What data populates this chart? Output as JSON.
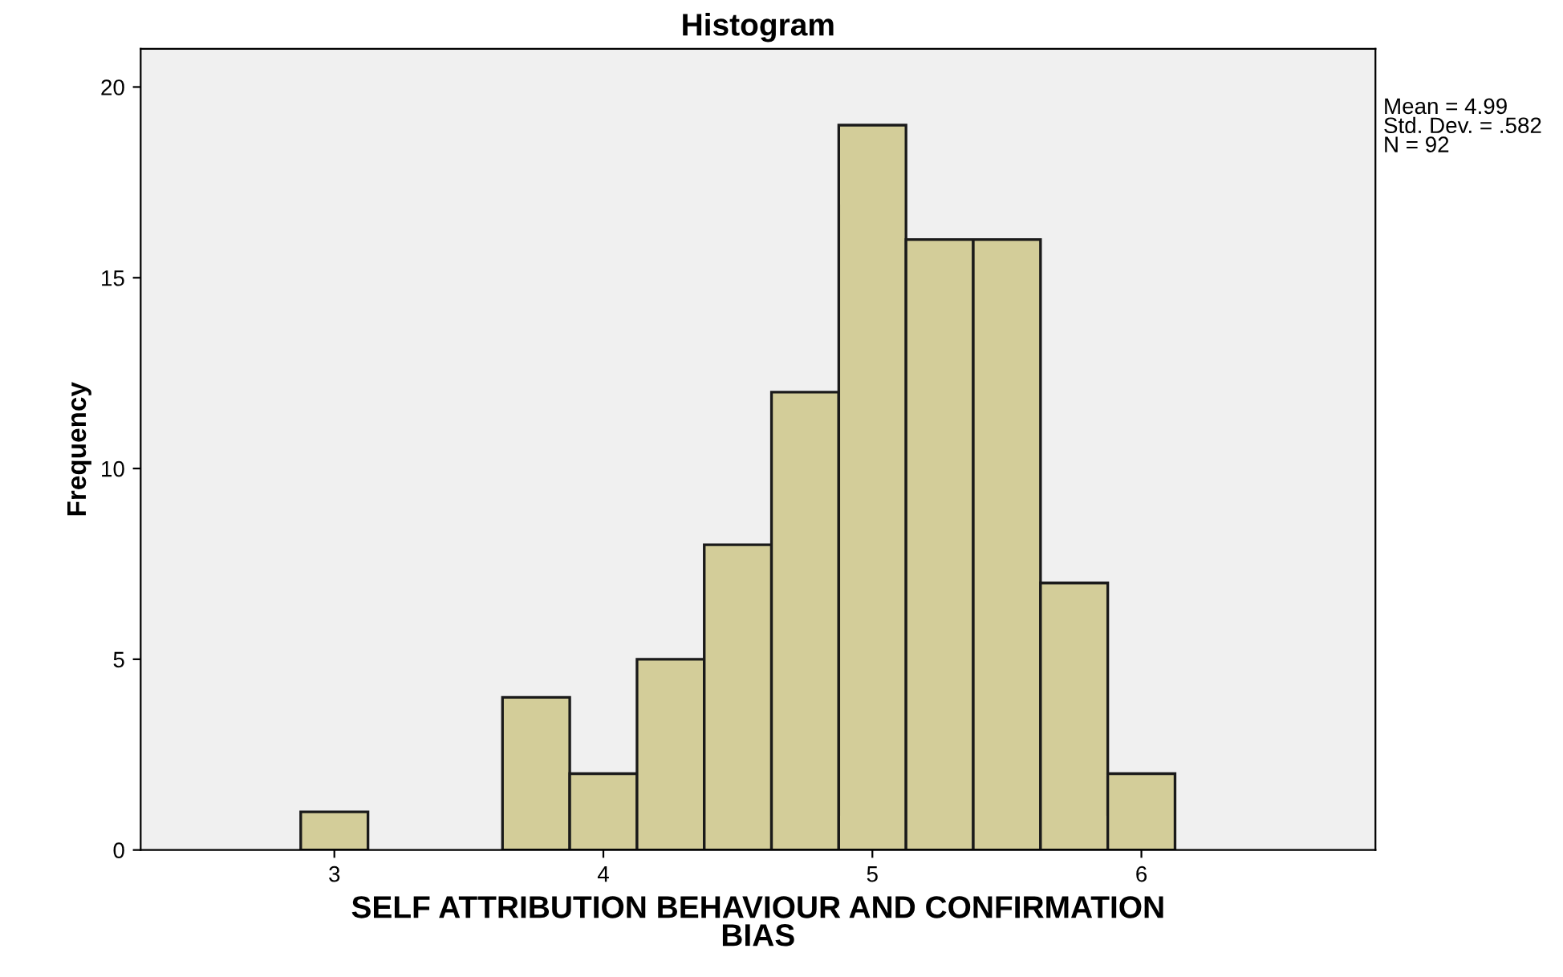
{
  "chart_data": {
    "type": "histogram",
    "title": "Histogram",
    "xlabel": "SELF ATTRIBUTION BEHAVIOUR AND CONFIRMATION\nBIAS",
    "ylabel": "Frequency",
    "bins": [
      2.875,
      3.125,
      3.375,
      3.625,
      3.875,
      4.125,
      4.375,
      4.625,
      4.875,
      5.125,
      5.375,
      5.625,
      5.875,
      6.125
    ],
    "values": [
      1,
      0,
      0,
      4,
      2,
      5,
      8,
      12,
      19,
      16,
      16,
      7,
      2
    ],
    "color": "#d3cd99",
    "xlim": [
      2.28,
      6.87
    ],
    "ylim": [
      0,
      21
    ],
    "xticks": [
      3,
      4,
      5,
      6
    ],
    "yticks": [
      0,
      5,
      10,
      15,
      20
    ],
    "annotations": [
      "Mean = 4.99\nStd. Dev. = .582\nN = 92"
    ],
    "grid": false
  }
}
